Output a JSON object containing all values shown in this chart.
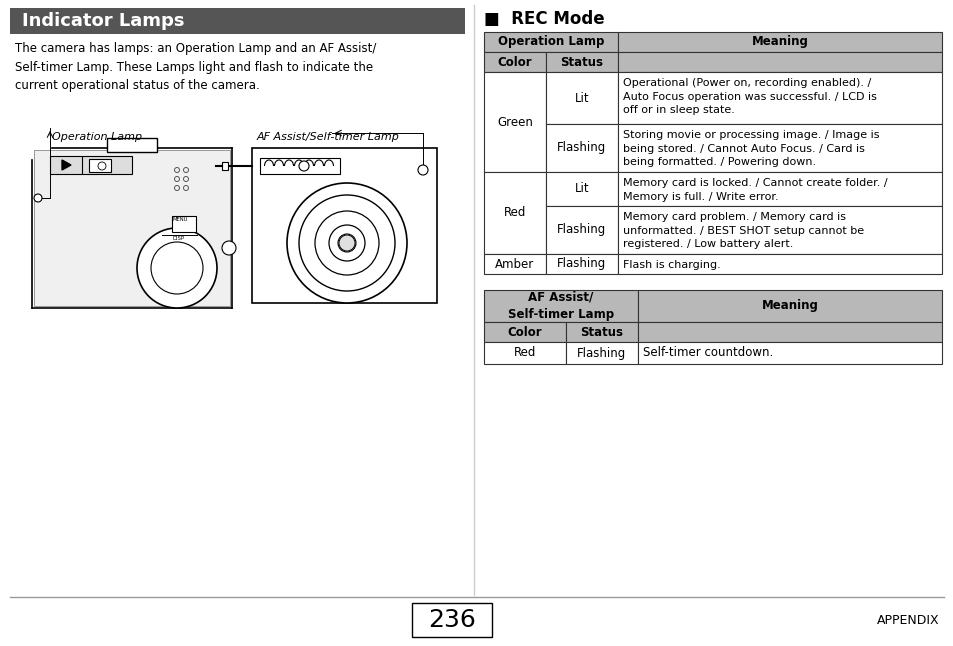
{
  "bg_color": "#ffffff",
  "title_bar_color": "#555555",
  "title_text": "Indicator Lamps",
  "title_text_color": "#ffffff",
  "header_gray": "#b8b8b8",
  "body_text_color": "#000000",
  "page_number": "236",
  "appendix_text": "APPENDIX",
  "intro_text": "The camera has lamps: an Operation Lamp and an AF Assist/\nSelf-timer Lamp. These Lamps light and flash to indicate the\ncurrent operational status of the camera.",
  "op_lamp_label": "Operation Lamp",
  "af_lamp_label": "AF Assist/Self-timer Lamp",
  "rec_mode_title": "■  REC Mode",
  "table1_header_col1": "Operation Lamp",
  "table1_subheader_col1": "Color",
  "table1_subheader_col2": "Status",
  "table1_subheader_col3": "Meaning",
  "table1_rows": [
    {
      "color": "Green",
      "status": "Lit",
      "meaning": "Operational (Power on, recording enabled). /\nAuto Focus operation was successful. / LCD is\noff or in sleep state.",
      "color_span": 2
    },
    {
      "color": "",
      "status": "Flashing",
      "meaning": "Storing movie or processing image. / Image is\nbeing stored. / Cannot Auto Focus. / Card is\nbeing formatted. / Powering down.",
      "color_span": 0
    },
    {
      "color": "Red",
      "status": "Lit",
      "meaning": "Memory card is locked. / Cannot create folder. /\nMemory is full. / Write error.",
      "color_span": 2
    },
    {
      "color": "",
      "status": "Flashing",
      "meaning": "Memory card problem. / Memory card is\nunformatted. / BEST SHOT setup cannot be\nregistered. / Low battery alert.",
      "color_span": 0
    },
    {
      "color": "Amber",
      "status": "Flashing",
      "meaning": "Flash is charging.",
      "color_span": 1
    }
  ],
  "table2_header_col1": "AF Assist/\nSelf-timer Lamp",
  "table2_subheader_col1": "Color",
  "table2_subheader_col2": "Status",
  "table2_subheader_col3": "Meaning",
  "table2_rows": [
    {
      "color": "Red",
      "status": "Flashing",
      "meaning": "Self-timer countdown."
    }
  ],
  "divider_color": "#999999",
  "table_border_color": "#333333"
}
